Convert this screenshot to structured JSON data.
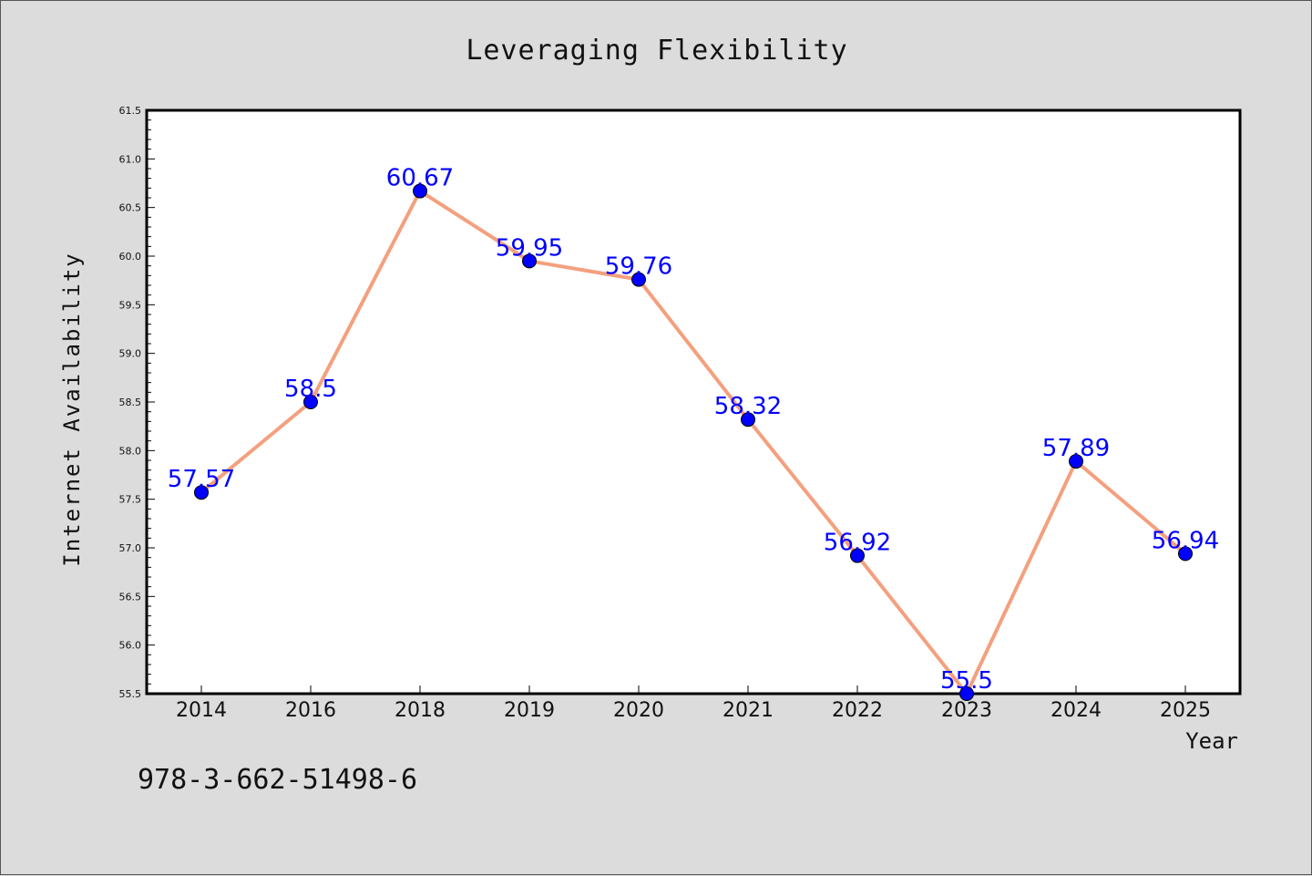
{
  "chart_data": {
    "type": "line",
    "title": "Leveraging Flexibility",
    "xlabel": "Year",
    "ylabel": "Internet Availability",
    "categories": [
      "2014",
      "2016",
      "2018",
      "2019",
      "2020",
      "2021",
      "2022",
      "2023",
      "2024",
      "2025"
    ],
    "series": [
      {
        "values": [
          57.57,
          58.5,
          60.67,
          59.95,
          59.76,
          58.32,
          56.92,
          55.5,
          57.89,
          56.94
        ]
      }
    ],
    "data_labels": [
      "57.57",
      "58.5",
      "60.67",
      "59.95",
      "59.76",
      "58.32",
      "56.92",
      "55.5",
      "57.89",
      "56.94"
    ],
    "ylim": [
      55.5,
      61.5
    ],
    "yticks": [
      "55.5",
      "56.0",
      "56.5",
      "57.0",
      "57.5",
      "58.0",
      "58.5",
      "59.0",
      "59.5",
      "60.0",
      "60.5",
      "61.0",
      "61.5"
    ],
    "grid": false,
    "legend": "none",
    "line_color": "#f4a07e",
    "marker_color": "#0000ff",
    "label_color": "#0000ff"
  },
  "footer": {
    "isbn": "978-3-662-51498-6"
  }
}
